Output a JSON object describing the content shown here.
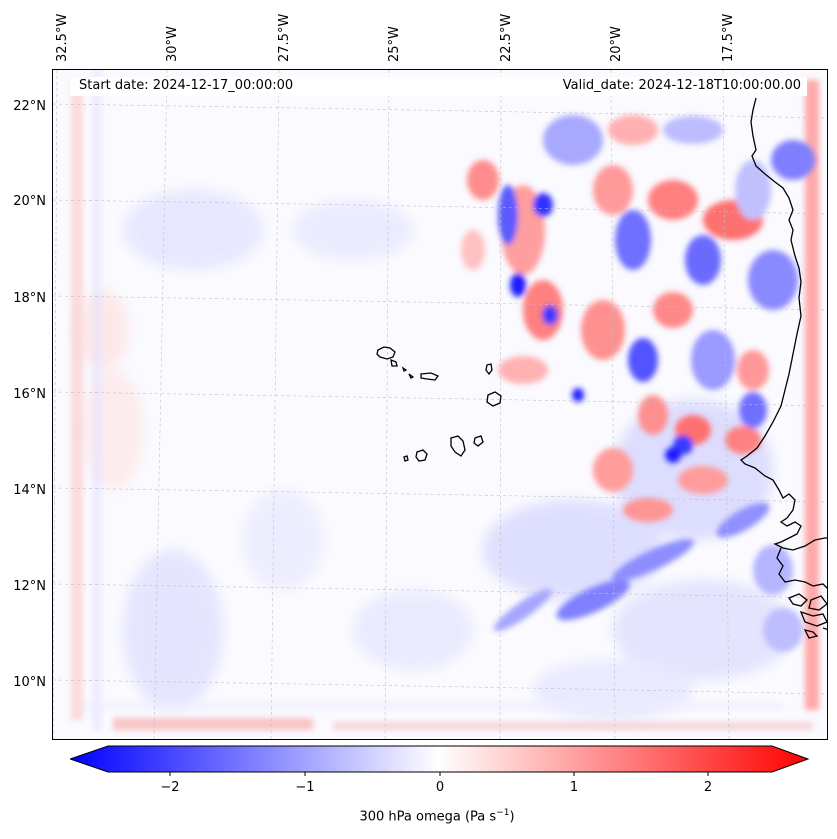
{
  "map": {
    "header": {
      "start_date": "Start date: 2024-12-17_00:00:00",
      "valid_date": "Valid_date: 2024-12-18T10:00:00.00"
    },
    "longitude_labels": [
      "32.5°W",
      "30°W",
      "27.5°W",
      "25°W",
      "22.5°W",
      "20°W",
      "17.5°W"
    ],
    "latitude_labels": [
      "22°N",
      "20°N",
      "18°N",
      "16°N",
      "14°N",
      "12°N",
      "10°N"
    ],
    "field": {
      "name": "300 hPa omega",
      "unit_base": "(Pa s",
      "unit_exponent": "−1",
      "unit_close": ")"
    },
    "colorbar": {
      "ticks": [
        "−2",
        "−1",
        "0",
        "1",
        "2"
      ],
      "min_color": "#0000ff",
      "mid_color": "#ffffff",
      "max_color": "#ff0000",
      "extend": "both"
    },
    "grid": true
  }
}
